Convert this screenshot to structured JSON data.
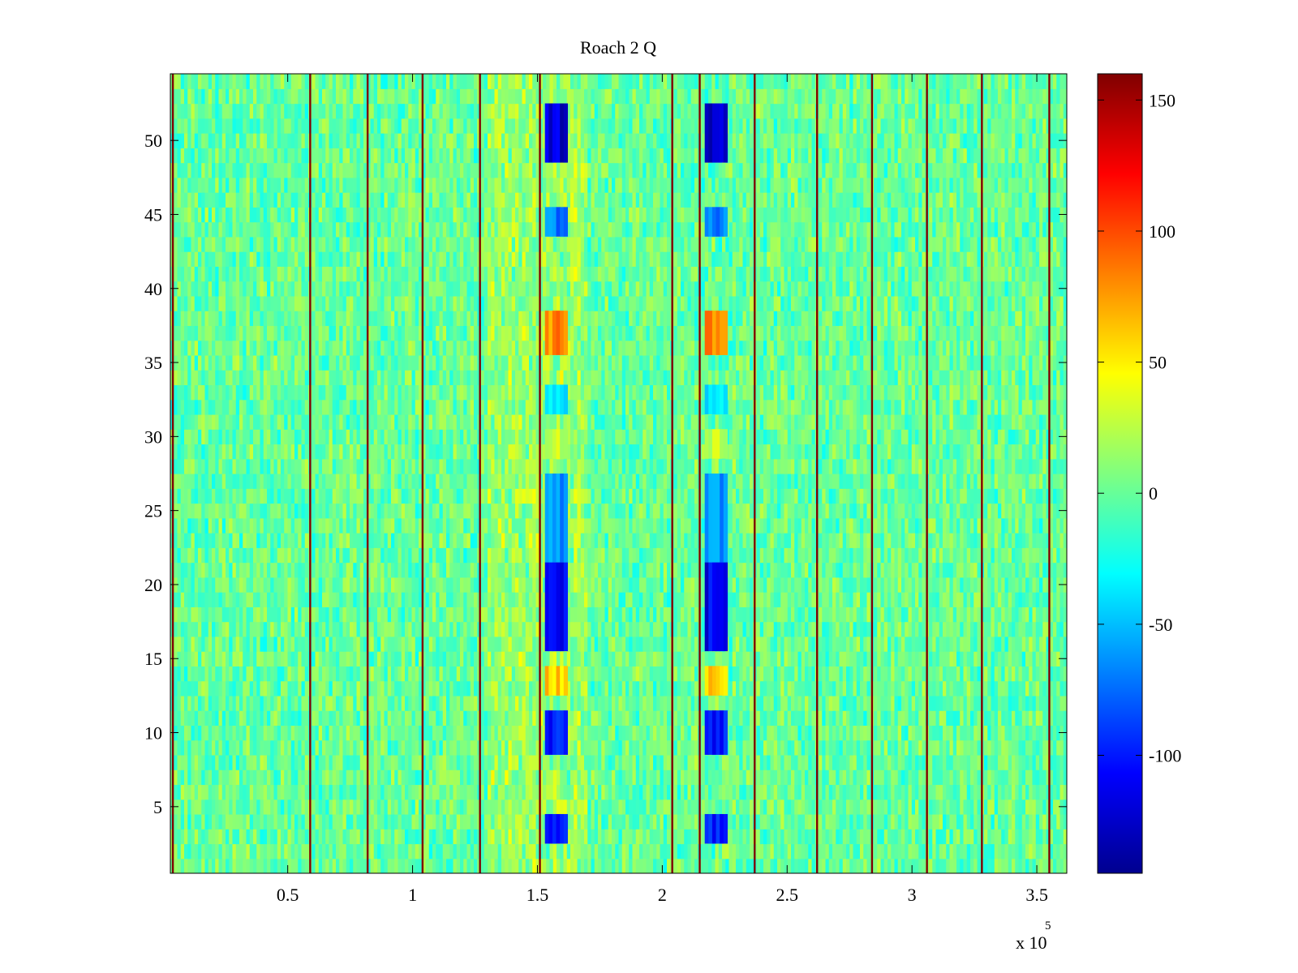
{
  "chart_data": {
    "type": "heatmap",
    "title": "Roach 2 Q",
    "xlabel": "",
    "ylabel": "",
    "x_exponent_label": "x 10",
    "x_exponent_power": "5",
    "xlim": [
      0.03,
      3.62
    ],
    "ylim": [
      0.5,
      54.5
    ],
    "x_ticks": [
      0.5,
      1,
      1.5,
      2,
      2.5,
      3,
      3.5
    ],
    "x_tick_labels": [
      "0.5",
      "1",
      "1.5",
      "2",
      "2.5",
      "3",
      "3.5"
    ],
    "y_ticks": [
      5,
      10,
      15,
      20,
      25,
      30,
      35,
      40,
      45,
      50
    ],
    "y_tick_labels": [
      "5",
      "10",
      "15",
      "20",
      "25",
      "30",
      "35",
      "40",
      "45",
      "50"
    ],
    "rows": 54,
    "colorbar": {
      "colormap": "jet",
      "clim": [
        -145,
        160
      ],
      "ticks": [
        150,
        100,
        50,
        0,
        -50,
        -100
      ],
      "tick_labels": [
        "150",
        "100",
        "50",
        "0",
        "-50",
        "-100"
      ]
    },
    "background_value_range": [
      -30,
      30
    ],
    "high_value_lines_x": [
      0.04,
      0.59,
      0.82,
      1.04,
      1.27,
      1.51,
      2.04,
      2.15,
      2.37,
      2.62,
      2.84,
      3.06,
      3.28,
      3.55
    ],
    "high_value_lines_value": 160,
    "column_features": [
      {
        "x_range": [
          1.53,
          1.62
        ],
        "rows": [
          [
            3,
            4,
            -100
          ],
          [
            9,
            11,
            -100
          ],
          [
            13,
            14,
            60
          ],
          [
            16,
            21,
            -110
          ],
          [
            22,
            27,
            -60
          ],
          [
            29,
            30,
            30
          ],
          [
            32,
            33,
            -40
          ],
          [
            36,
            38,
            80
          ],
          [
            44,
            45,
            -70
          ],
          [
            49,
            52,
            -120
          ]
        ]
      },
      {
        "x_range": [
          2.17,
          2.26
        ],
        "rows": [
          [
            3,
            4,
            -100
          ],
          [
            9,
            11,
            -100
          ],
          [
            13,
            14,
            60
          ],
          [
            16,
            21,
            -110
          ],
          [
            22,
            27,
            -60
          ],
          [
            29,
            30,
            30
          ],
          [
            32,
            33,
            -40
          ],
          [
            36,
            38,
            80
          ],
          [
            44,
            45,
            -70
          ],
          [
            49,
            52,
            -120
          ]
        ]
      }
    ],
    "warm_region_x": [
      1.3,
      1.7
    ],
    "grid": false
  }
}
